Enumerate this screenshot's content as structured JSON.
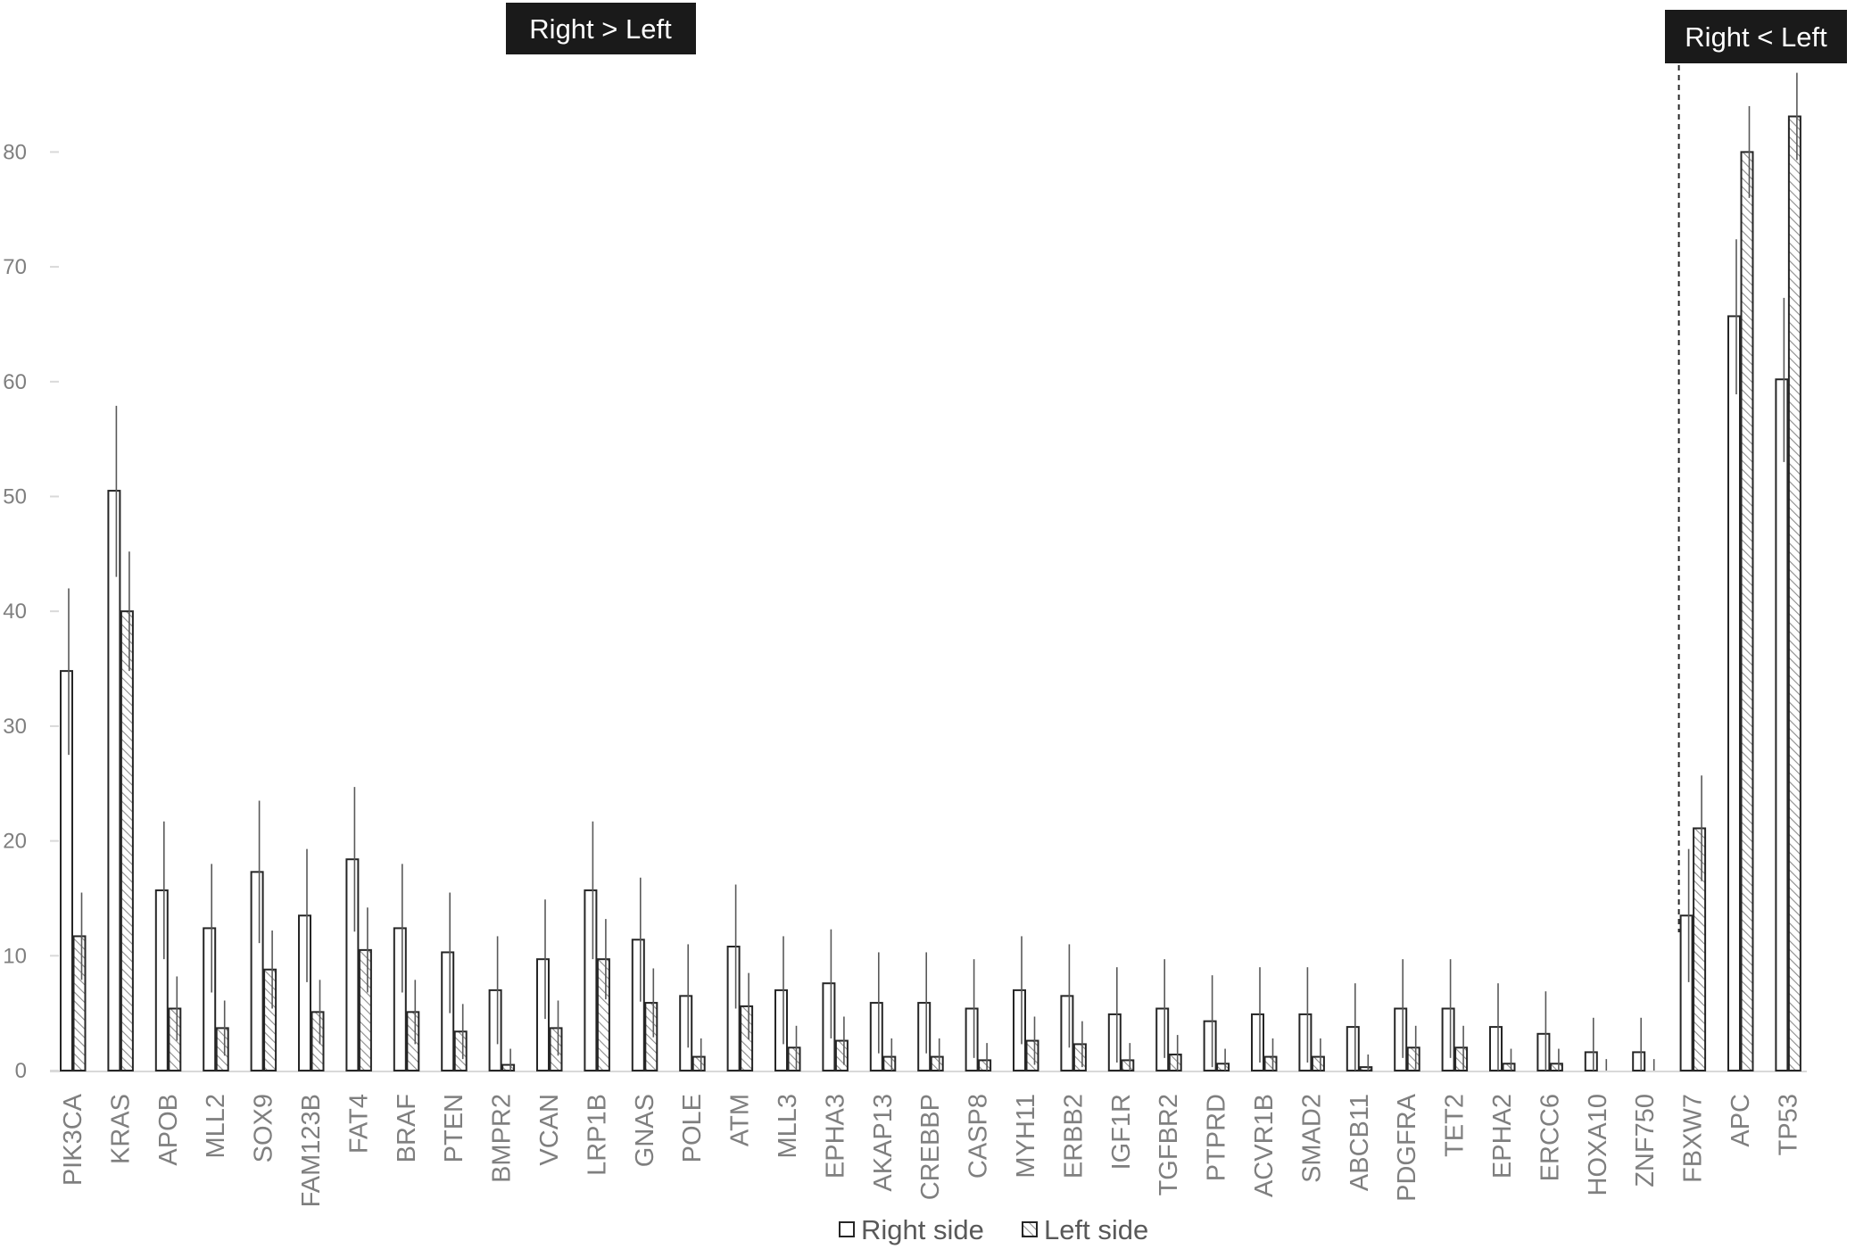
{
  "chart_data": {
    "type": "bar",
    "title": "",
    "xlabel": "",
    "ylabel": "",
    "ylim": [
      0,
      90
    ],
    "yticks": [
      0,
      10,
      20,
      30,
      40,
      50,
      60,
      70,
      80
    ],
    "grid": false,
    "legend_placement": "bottom-center",
    "categories": [
      "PIK3CA",
      "KRAS",
      "APOB",
      "MLL2",
      "SOX9",
      "FAM123B",
      "FAT4",
      "BRAF",
      "PTEN",
      "BMPR2",
      "VCAN",
      "LRP1B",
      "GNAS",
      "POLE",
      "ATM",
      "MLL3",
      "EPHA3",
      "AKAP13",
      "CREBBP",
      "CASP8",
      "MYH11",
      "ERBB2",
      "IGF1R",
      "TGFBR2",
      "PTPRD",
      "ACVR1B",
      "SMAD2",
      "ABCB11",
      "PDGFRA",
      "TET2",
      "EPHA2",
      "ERCC6",
      "HOXA10",
      "ZNF750",
      "FBXW7",
      "APC",
      "TP53"
    ],
    "series": [
      {
        "name": "Right side",
        "pattern": "open",
        "values": [
          34.8,
          50.5,
          15.7,
          12.4,
          17.3,
          13.5,
          18.4,
          12.4,
          10.3,
          7.0,
          9.7,
          15.7,
          11.4,
          6.5,
          10.8,
          7.0,
          7.6,
          5.9,
          5.9,
          5.4,
          7.0,
          6.5,
          4.9,
          5.4,
          4.3,
          4.9,
          4.9,
          3.8,
          5.4,
          5.4,
          3.8,
          3.2,
          1.6,
          1.6,
          13.5,
          65.7,
          60.2
        ],
        "err_upper": [
          42.0,
          57.9,
          21.7,
          18.0,
          23.5,
          19.3,
          24.7,
          18.0,
          15.5,
          11.7,
          14.9,
          21.7,
          16.8,
          11.0,
          16.2,
          11.7,
          12.3,
          10.3,
          10.3,
          9.7,
          11.7,
          11.0,
          9.0,
          9.7,
          8.3,
          9.0,
          9.0,
          7.6,
          9.7,
          9.7,
          7.6,
          6.9,
          4.6,
          4.6,
          19.3,
          72.4,
          67.3
        ],
        "err_lower": [
          27.5,
          43.0,
          9.7,
          6.8,
          11.1,
          7.7,
          12.1,
          6.8,
          5.0,
          2.3,
          4.5,
          9.7,
          6.0,
          2.0,
          5.4,
          2.3,
          2.8,
          1.5,
          1.5,
          1.1,
          2.3,
          2.0,
          0.7,
          1.1,
          0.3,
          0.7,
          0.7,
          0.0,
          1.1,
          1.1,
          0.0,
          0.0,
          0.0,
          0.0,
          7.7,
          58.9,
          53.0
        ]
      },
      {
        "name": "Left side",
        "pattern": "hatched",
        "values": [
          11.7,
          40.0,
          5.4,
          3.7,
          8.8,
          5.1,
          10.5,
          5.1,
          3.4,
          0.5,
          3.7,
          9.7,
          5.9,
          1.2,
          5.6,
          2.0,
          2.6,
          1.2,
          1.2,
          0.9,
          2.6,
          2.3,
          0.9,
          1.4,
          0.6,
          1.2,
          1.2,
          0.3,
          2.0,
          2.0,
          0.6,
          0.6,
          0.0,
          0.0,
          21.1,
          80.0,
          83.1
        ],
        "err_upper": [
          15.5,
          45.2,
          8.2,
          6.1,
          12.2,
          7.9,
          14.2,
          7.9,
          5.8,
          1.9,
          6.1,
          13.2,
          8.9,
          2.8,
          8.5,
          3.9,
          4.7,
          2.8,
          2.8,
          2.4,
          4.7,
          4.3,
          2.4,
          3.1,
          1.9,
          2.8,
          2.8,
          1.4,
          3.9,
          3.9,
          1.9,
          1.9,
          1.0,
          1.0,
          25.7,
          84.0,
          86.9
        ],
        "err_lower": [
          7.9,
          34.8,
          2.6,
          1.3,
          5.4,
          2.3,
          6.8,
          2.3,
          1.0,
          0.0,
          1.3,
          6.2,
          2.9,
          0.0,
          2.7,
          0.1,
          0.5,
          0.0,
          0.0,
          0.0,
          0.5,
          0.3,
          0.0,
          0.0,
          0.0,
          0.0,
          0.0,
          0.0,
          0.1,
          0.1,
          0.0,
          0.0,
          0.0,
          0.0,
          16.5,
          76.0,
          79.3
        ]
      }
    ],
    "annotations": [
      {
        "text": "Right > Left"
      },
      {
        "text": "Right < Left"
      }
    ],
    "divider_after_category": "ZNF750",
    "colors": {
      "bar_outline": "#262626",
      "error_bar": "#595959",
      "hatch": "#7f7f7f",
      "axis": "#d9d9d9",
      "label_box": "#1a1a1a"
    }
  }
}
